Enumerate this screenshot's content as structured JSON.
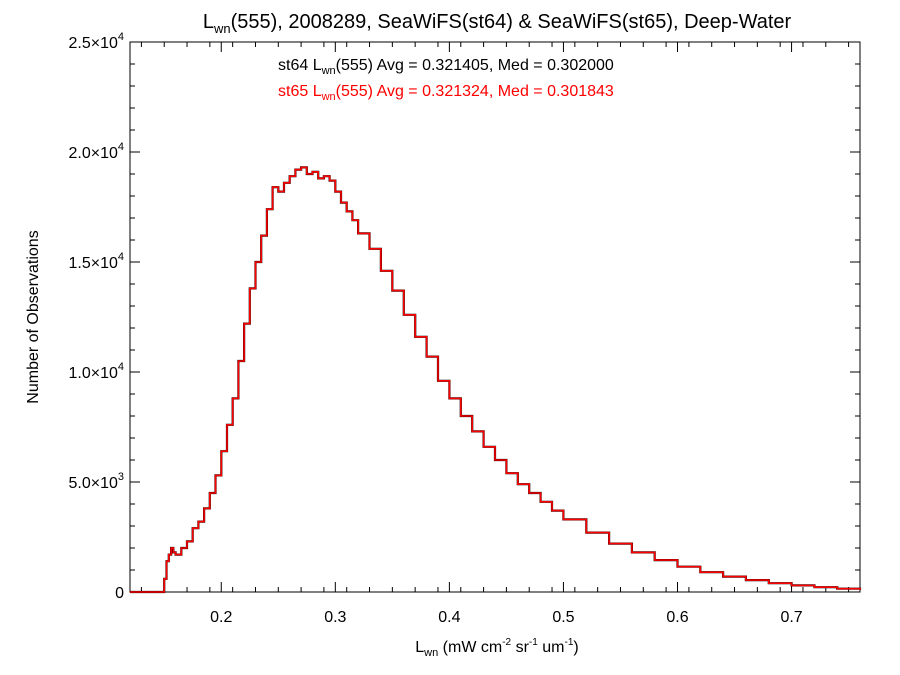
{
  "chart_data": {
    "type": "line",
    "title": {
      "prefix": "L",
      "sub": "wn",
      "rest": "(555), 2008289, SeaWiFS(st64) & SeaWiFS(st65), Deep-Water"
    },
    "xlabel": {
      "prefix": "L",
      "sub": "wn",
      "units": " (mW cm",
      "sup1": "-2",
      "mid1": " sr",
      "sup2": "-1",
      "mid2": " um",
      "sup3": "-1",
      "end": ")"
    },
    "ylabel": "Number of Observations",
    "xlim": [
      0.12,
      0.76
    ],
    "ylim": [
      0,
      25000
    ],
    "x_ticks": [
      0.2,
      0.3,
      0.4,
      0.5,
      0.6,
      0.7
    ],
    "x_tick_labels": [
      "0.2",
      "0.3",
      "0.4",
      "0.5",
      "0.6",
      "0.7"
    ],
    "y_ticks": [
      0,
      5000,
      10000,
      15000,
      20000,
      25000
    ],
    "y_tick_labels": [
      {
        "mant": "0",
        "exp": ""
      },
      {
        "mant": "5.0×10",
        "exp": "3"
      },
      {
        "mant": "1.0×10",
        "exp": "4"
      },
      {
        "mant": "1.5×10",
        "exp": "4"
      },
      {
        "mant": "2.0×10",
        "exp": "4"
      },
      {
        "mant": "2.5×10",
        "exp": "4"
      }
    ],
    "annotations": [
      {
        "pre": "st64 L",
        "sub": "wn",
        "post": "(555) Avg = 0.321405, Med = 0.302000",
        "color": "#000000"
      },
      {
        "pre": "st65 L",
        "sub": "wn",
        "post": "(555) Avg = 0.321324, Med = 0.301843",
        "color": "#ff0000"
      }
    ],
    "bin_width": 0.002,
    "grid": false,
    "series": [
      {
        "color": "#000000",
        "x": [
          0.12,
          0.15,
          0.152,
          0.154,
          0.156,
          0.158,
          0.16,
          0.165,
          0.17,
          0.175,
          0.18,
          0.185,
          0.19,
          0.195,
          0.2,
          0.205,
          0.21,
          0.215,
          0.22,
          0.225,
          0.23,
          0.235,
          0.24,
          0.245,
          0.25,
          0.255,
          0.26,
          0.265,
          0.27,
          0.275,
          0.28,
          0.285,
          0.29,
          0.295,
          0.3,
          0.305,
          0.31,
          0.315,
          0.32,
          0.33,
          0.34,
          0.35,
          0.36,
          0.37,
          0.38,
          0.39,
          0.4,
          0.41,
          0.42,
          0.43,
          0.44,
          0.45,
          0.46,
          0.47,
          0.48,
          0.49,
          0.5,
          0.52,
          0.54,
          0.56,
          0.58,
          0.6,
          0.62,
          0.64,
          0.66,
          0.68,
          0.7,
          0.72,
          0.74,
          0.76
        ],
        "y": [
          0,
          600,
          1400,
          1700,
          2000,
          1800,
          1700,
          2000,
          2300,
          2900,
          3200,
          3800,
          4500,
          5300,
          6400,
          7600,
          8800,
          10500,
          12200,
          13800,
          15000,
          16200,
          17400,
          18400,
          18200,
          18600,
          18900,
          19200,
          19300,
          19000,
          19100,
          18800,
          18900,
          18700,
          18200,
          17700,
          17300,
          16900,
          16300,
          15600,
          14600,
          13700,
          12600,
          11600,
          10700,
          9600,
          8800,
          8000,
          7300,
          6600,
          6000,
          5400,
          4900,
          4500,
          4100,
          3700,
          3300,
          2700,
          2200,
          1800,
          1450,
          1150,
          900,
          700,
          540,
          400,
          300,
          220,
          150,
          100
        ]
      },
      {
        "color": "#ff0000",
        "x": [
          0.12,
          0.15,
          0.152,
          0.154,
          0.156,
          0.158,
          0.16,
          0.165,
          0.17,
          0.175,
          0.18,
          0.185,
          0.19,
          0.195,
          0.2,
          0.205,
          0.21,
          0.215,
          0.22,
          0.225,
          0.23,
          0.235,
          0.24,
          0.245,
          0.25,
          0.255,
          0.26,
          0.265,
          0.27,
          0.275,
          0.28,
          0.285,
          0.29,
          0.295,
          0.3,
          0.305,
          0.31,
          0.315,
          0.32,
          0.33,
          0.34,
          0.35,
          0.36,
          0.37,
          0.38,
          0.39,
          0.4,
          0.41,
          0.42,
          0.43,
          0.44,
          0.45,
          0.46,
          0.47,
          0.48,
          0.49,
          0.5,
          0.52,
          0.54,
          0.56,
          0.58,
          0.6,
          0.62,
          0.64,
          0.66,
          0.68,
          0.7,
          0.72,
          0.74,
          0.76
        ],
        "y": [
          0,
          600,
          1400,
          1700,
          2000,
          1800,
          1700,
          2000,
          2300,
          2900,
          3200,
          3800,
          4500,
          5300,
          6400,
          7600,
          8800,
          10500,
          12200,
          13800,
          15000,
          16200,
          17400,
          18400,
          18200,
          18600,
          18900,
          19200,
          19300,
          19000,
          19100,
          18800,
          18900,
          18700,
          18200,
          17700,
          17300,
          16900,
          16300,
          15600,
          14600,
          13700,
          12600,
          11600,
          10700,
          9600,
          8800,
          8000,
          7300,
          6600,
          6000,
          5400,
          4900,
          4500,
          4100,
          3700,
          3300,
          2700,
          2200,
          1800,
          1450,
          1150,
          900,
          700,
          540,
          400,
          300,
          220,
          150,
          100
        ]
      }
    ]
  }
}
